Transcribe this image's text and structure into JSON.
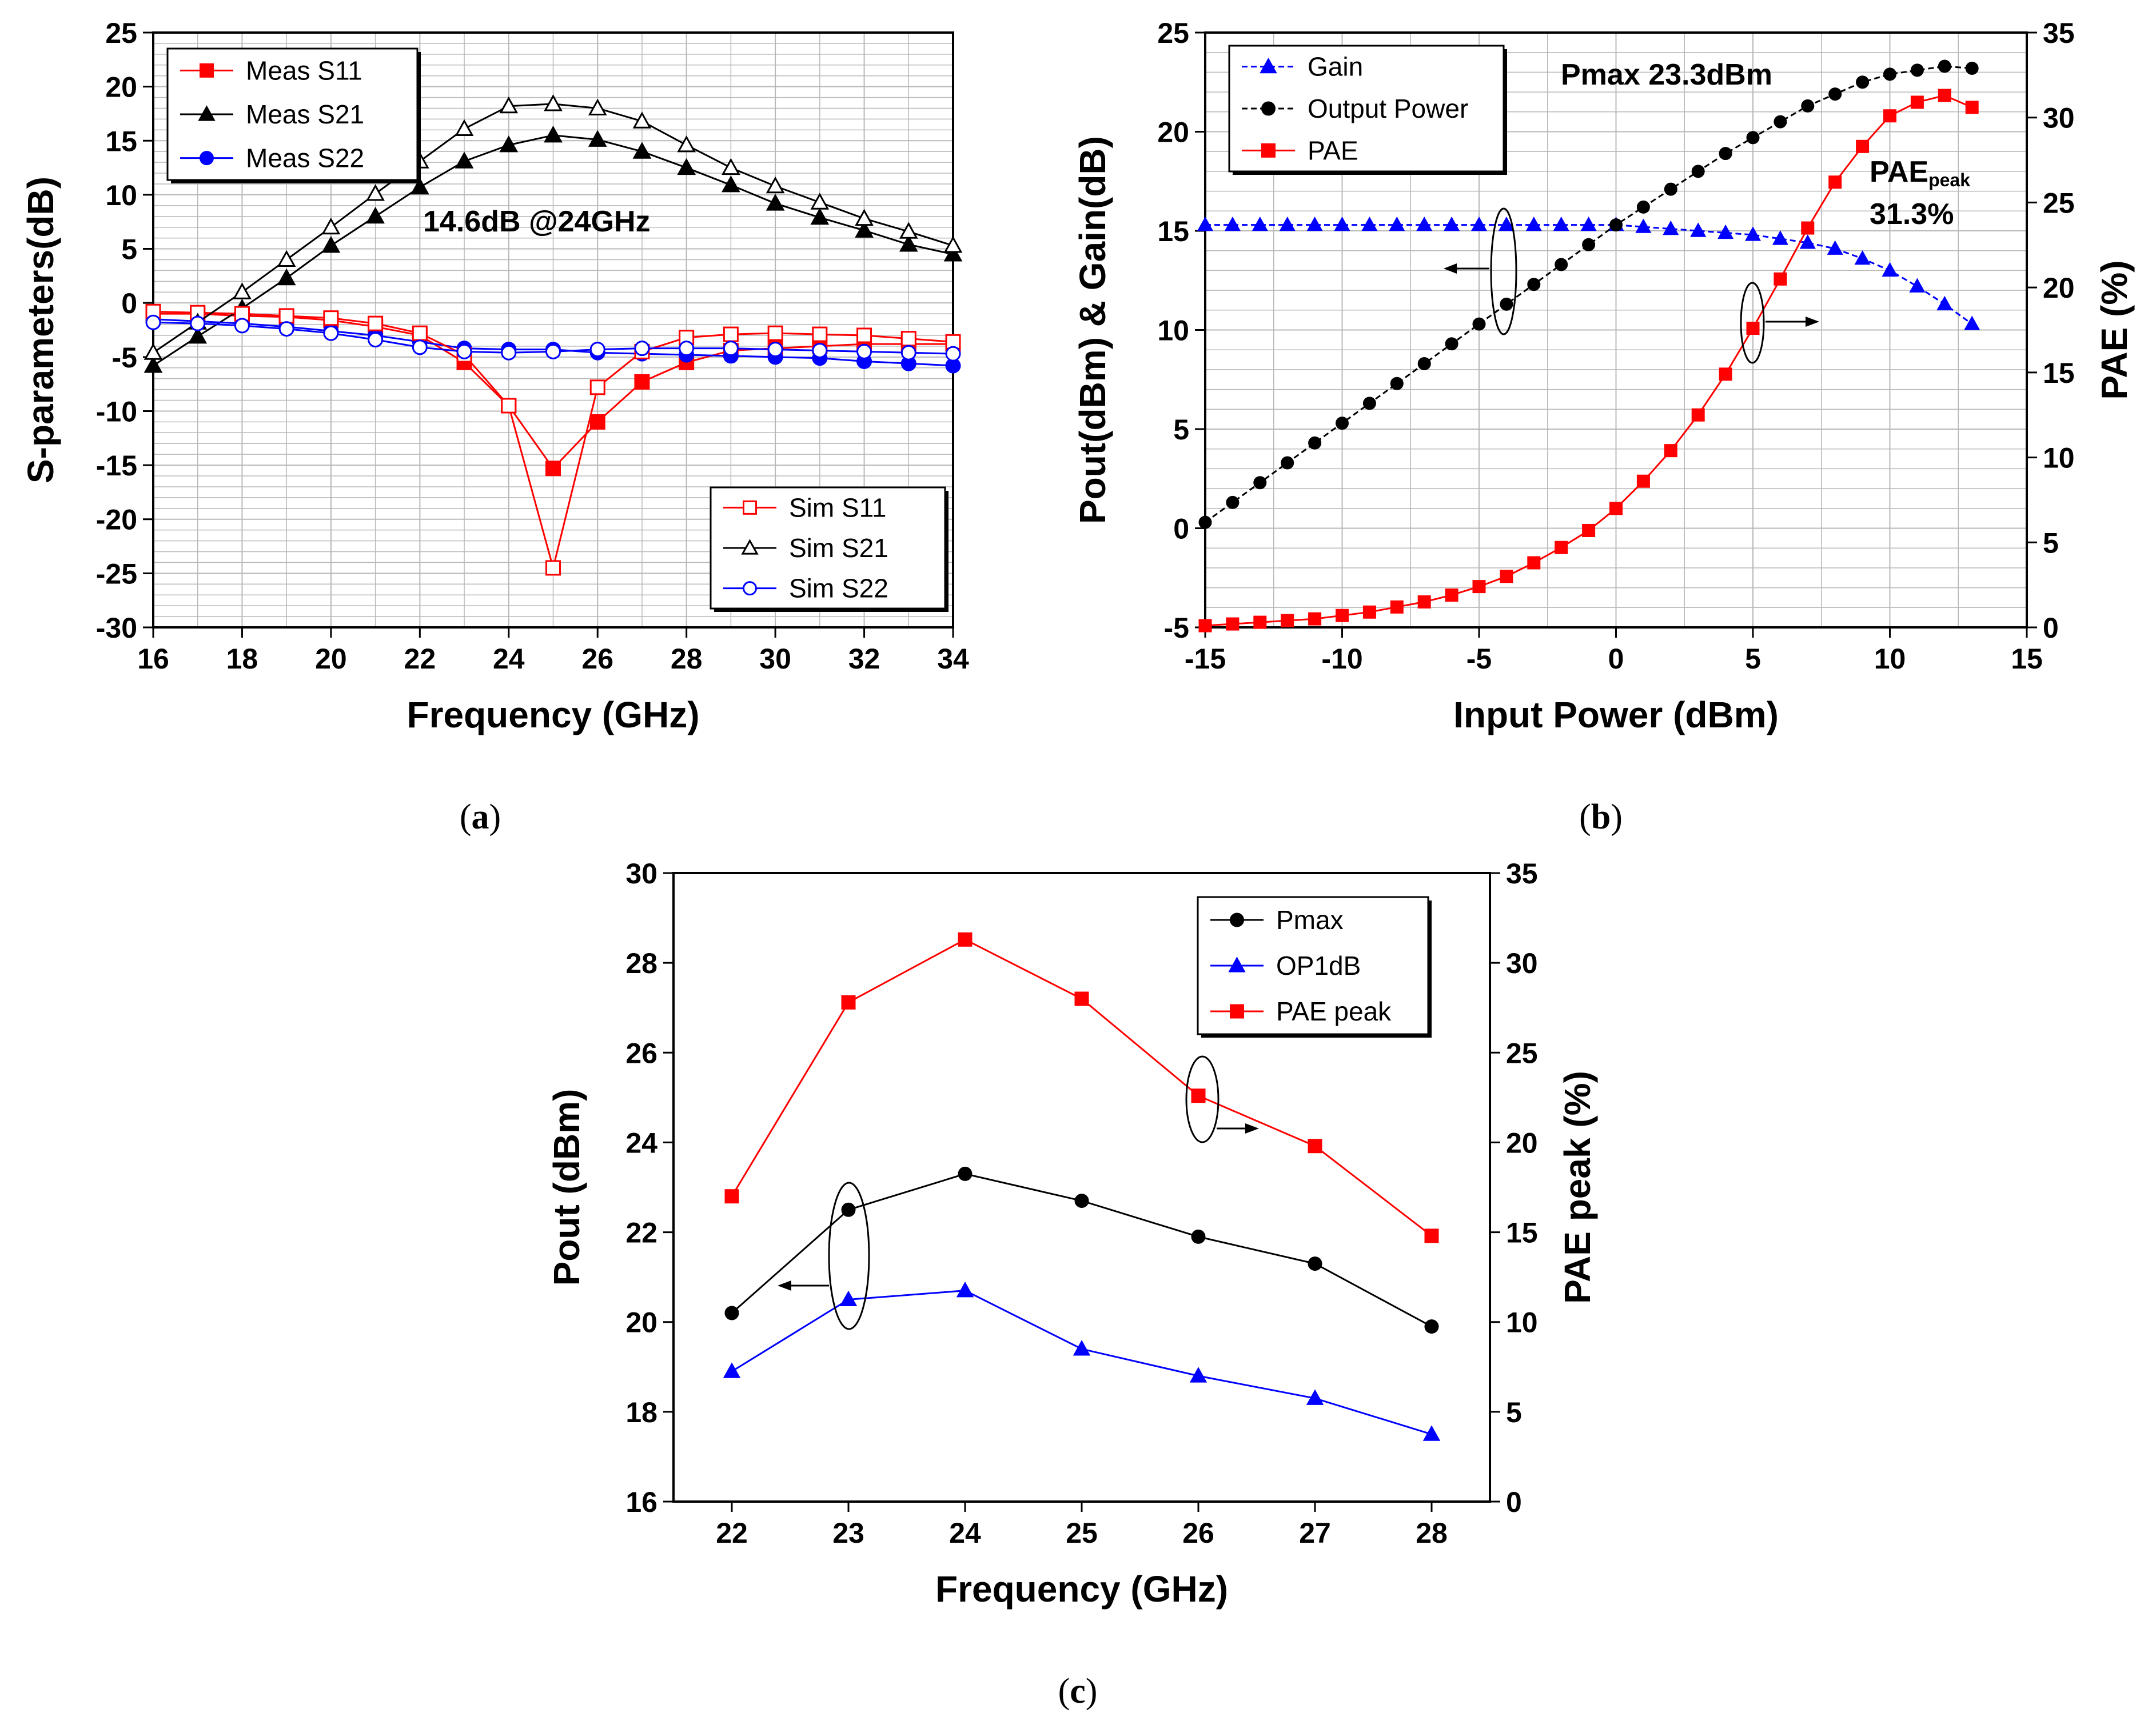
{
  "chart_data": [
    {
      "id": "a",
      "type": "line",
      "caption": "a",
      "xlabel": "Frequency (GHz)",
      "ylabel": "S-parameters(dB)",
      "xlim": [
        16,
        34
      ],
      "ylim": [
        -30,
        25
      ],
      "x_ticks": [
        16,
        18,
        20,
        22,
        24,
        26,
        28,
        30,
        32,
        34
      ],
      "y_ticks": [
        -30,
        -25,
        -20,
        -15,
        -10,
        -5,
        0,
        5,
        10,
        15,
        20,
        25
      ],
      "grid": true,
      "annotation": "14.6dB @24GHz",
      "x": [
        16,
        17,
        18,
        19,
        20,
        21,
        22,
        23,
        24,
        25,
        26,
        27,
        28,
        29,
        30,
        31,
        32,
        33,
        34
      ],
      "series": [
        {
          "name": "Meas S11",
          "color": "#ff0000",
          "marker": "square-filled",
          "values": [
            -1.0,
            -1.0,
            -1.2,
            -1.3,
            -1.6,
            -2.2,
            -3.0,
            -5.5,
            -9.5,
            -15.3,
            -11.0,
            -7.3,
            -5.5,
            -4.4,
            -4.2,
            -4.0,
            -3.8,
            -3.8,
            -3.8
          ]
        },
        {
          "name": "Meas S21",
          "color": "#000000",
          "marker": "triangle-filled",
          "values": [
            -5.8,
            -3.1,
            -0.5,
            2.3,
            5.3,
            8.0,
            10.7,
            13.1,
            14.6,
            15.5,
            15.1,
            14.0,
            12.5,
            10.9,
            9.2,
            7.9,
            6.7,
            5.4,
            4.5
          ]
        },
        {
          "name": "Meas S22",
          "color": "#0000ff",
          "marker": "circle-filled",
          "values": [
            -1.5,
            -1.7,
            -1.9,
            -2.2,
            -2.6,
            -3.0,
            -3.6,
            -4.2,
            -4.3,
            -4.3,
            -4.6,
            -4.7,
            -4.8,
            -4.9,
            -5.0,
            -5.1,
            -5.4,
            -5.6,
            -5.8
          ]
        },
        {
          "name": "Sim S11",
          "color": "#ff0000",
          "marker": "square-open",
          "values": [
            -0.8,
            -0.9,
            -1.0,
            -1.2,
            -1.4,
            -1.9,
            -2.8,
            -4.8,
            -9.5,
            -24.5,
            -7.8,
            -4.5,
            -3.2,
            -2.9,
            -2.8,
            -2.9,
            -3.0,
            -3.3,
            -3.6
          ]
        },
        {
          "name": "Sim S21",
          "color": "#000000",
          "marker": "triangle-open",
          "values": [
            -4.6,
            -1.8,
            1.0,
            4.0,
            7.0,
            10.1,
            13.1,
            16.1,
            18.2,
            18.4,
            18.0,
            16.8,
            14.6,
            12.5,
            10.8,
            9.3,
            7.8,
            6.6,
            5.3
          ]
        },
        {
          "name": "Sim S22",
          "color": "#0000ff",
          "marker": "circle-open",
          "values": [
            -1.8,
            -1.9,
            -2.1,
            -2.4,
            -2.8,
            -3.4,
            -4.1,
            -4.5,
            -4.6,
            -4.5,
            -4.3,
            -4.2,
            -4.2,
            -4.2,
            -4.3,
            -4.4,
            -4.5,
            -4.6,
            -4.7
          ]
        }
      ],
      "legends": [
        {
          "placement": "top-left",
          "entries": [
            "Meas S11",
            "Meas S21",
            "Meas S22"
          ]
        },
        {
          "placement": "bottom-right",
          "entries": [
            "Sim S11",
            "Sim S21",
            "Sim S22"
          ]
        }
      ]
    },
    {
      "id": "b",
      "type": "line",
      "caption": "b",
      "xlabel": "Input Power (dBm)",
      "ylabel": "Pout(dBm) & Gain(dB)",
      "y2label": "PAE (%)",
      "xlim": [
        -15,
        15
      ],
      "ylim": [
        -5,
        25
      ],
      "y2lim": [
        0,
        35
      ],
      "x_ticks": [
        -15,
        -10,
        -5,
        0,
        5,
        10,
        15
      ],
      "y_ticks": [
        -5,
        0,
        5,
        10,
        15,
        20,
        25
      ],
      "y2_ticks": [
        0,
        5,
        10,
        15,
        20,
        25,
        30,
        35
      ],
      "grid": true,
      "annotation_pmax": "Pmax 23.3dBm",
      "annotation_pae_base": "PAE",
      "annotation_pae_sub": "peak",
      "annotation_pae_value": "31.3%",
      "x": [
        -15,
        -14,
        -13,
        -12,
        -11,
        -10,
        -9,
        -8,
        -7,
        -6,
        -5,
        -4,
        -3,
        -2,
        -1,
        0,
        1,
        2,
        3,
        4,
        5,
        6,
        7,
        8,
        9,
        10,
        11,
        12,
        13
      ],
      "series": [
        {
          "name": "Gain",
          "color": "#0000ff",
          "marker": "triangle-filled",
          "axis": "left",
          "values": [
            15.3,
            15.3,
            15.3,
            15.3,
            15.3,
            15.3,
            15.3,
            15.3,
            15.3,
            15.3,
            15.3,
            15.3,
            15.3,
            15.3,
            15.3,
            15.3,
            15.2,
            15.1,
            15.0,
            14.9,
            14.8,
            14.6,
            14.4,
            14.1,
            13.6,
            13.0,
            12.2,
            11.3,
            10.3
          ]
        },
        {
          "name": "Output Power",
          "color": "#000000",
          "marker": "circle-filled",
          "axis": "left",
          "values": [
            0.3,
            1.3,
            2.3,
            3.3,
            4.3,
            5.3,
            6.3,
            7.3,
            8.3,
            9.3,
            10.3,
            11.3,
            12.3,
            13.3,
            14.3,
            15.3,
            16.2,
            17.1,
            18.0,
            18.9,
            19.7,
            20.5,
            21.3,
            21.9,
            22.5,
            22.9,
            23.1,
            23.3,
            23.2
          ]
        },
        {
          "name": "PAE",
          "color": "#ff0000",
          "marker": "square-filled",
          "axis": "right",
          "values": [
            0.1,
            0.2,
            0.3,
            0.4,
            0.5,
            0.7,
            0.9,
            1.2,
            1.5,
            1.9,
            2.4,
            3.0,
            3.8,
            4.7,
            5.7,
            7.0,
            8.6,
            10.4,
            12.5,
            14.9,
            17.6,
            20.5,
            23.5,
            26.2,
            28.3,
            30.1,
            30.9,
            31.3,
            30.6
          ]
        }
      ],
      "legends": [
        {
          "placement": "top-left",
          "entries": [
            "Gain",
            "Output Power",
            "PAE"
          ]
        }
      ]
    },
    {
      "id": "c",
      "type": "line",
      "caption": "c",
      "xlabel": "Frequency (GHz)",
      "ylabel": "Pout (dBm)",
      "y2label": "PAE peak (%)",
      "xlim": [
        21.5,
        28.5
      ],
      "ylim": [
        16,
        30
      ],
      "y2lim": [
        0,
        35
      ],
      "x_ticks": [
        22,
        23,
        24,
        25,
        26,
        27,
        28
      ],
      "y_ticks": [
        16,
        18,
        20,
        22,
        24,
        26,
        28,
        30
      ],
      "y2_ticks": [
        0,
        5,
        10,
        15,
        20,
        25,
        30,
        35
      ],
      "grid": false,
      "x": [
        22,
        23,
        24,
        25,
        26,
        27,
        28
      ],
      "series": [
        {
          "name": "Pmax",
          "color": "#000000",
          "marker": "circle-filled",
          "axis": "left",
          "values": [
            20.2,
            22.5,
            23.3,
            22.7,
            21.9,
            21.3,
            19.9
          ]
        },
        {
          "name": "OP1dB",
          "color": "#0000ff",
          "marker": "triangle-filled",
          "axis": "left",
          "values": [
            18.9,
            20.5,
            20.7,
            19.4,
            18.8,
            18.3,
            17.5
          ]
        },
        {
          "name": "PAE peak",
          "color": "#ff0000",
          "marker": "square-filled",
          "axis": "right",
          "values": [
            17.0,
            27.8,
            31.3,
            28.0,
            22.6,
            19.8,
            14.8
          ]
        }
      ],
      "legends": [
        {
          "placement": "top-right",
          "entries": [
            "Pmax",
            "OP1dB",
            "PAE peak"
          ]
        }
      ]
    }
  ]
}
